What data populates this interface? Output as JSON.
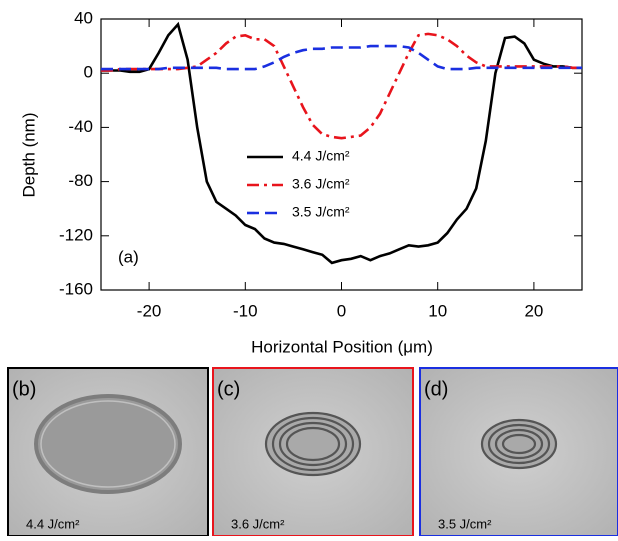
{
  "chart_data": {
    "type": "line",
    "xlabel": "Horizontal Position (μm)",
    "ylabel": "Depth (nm)",
    "annotation": "(a)",
    "xlim": [
      -25,
      25
    ],
    "xticks": [
      -20,
      -10,
      0,
      10,
      20
    ],
    "ylim": [
      -160,
      40
    ],
    "yticks": [
      -160,
      -120,
      -80,
      -40,
      0,
      40
    ],
    "x": [
      -25,
      -24,
      -23,
      -22,
      -21,
      -20,
      -19,
      -18,
      -17,
      -16,
      -15,
      -14,
      -13,
      -12,
      -11,
      -10,
      -9,
      -8,
      -7,
      -6,
      -5,
      -4,
      -3,
      -2,
      -1,
      0,
      1,
      2,
      3,
      4,
      5,
      6,
      7,
      8,
      9,
      10,
      11,
      12,
      13,
      14,
      15,
      16,
      17,
      18,
      19,
      20,
      21,
      22,
      23,
      24,
      25
    ],
    "series": [
      {
        "name": "4.4 J/cm²",
        "color": "#000000",
        "dash": "solid",
        "values": [
          2,
          2,
          2,
          1,
          1,
          3,
          15,
          28,
          36,
          10,
          -40,
          -80,
          -95,
          -100,
          -105,
          -112,
          -115,
          -122,
          -125,
          -126,
          -128,
          -130,
          -132,
          -134,
          -140,
          -138,
          -137,
          -135,
          -138,
          -135,
          -133,
          -130,
          -127,
          -128,
          -127,
          -125,
          -118,
          -108,
          -100,
          -85,
          -50,
          0,
          26,
          27,
          22,
          10,
          7,
          5,
          5,
          4,
          4
        ]
      },
      {
        "name": "3.6 J/cm²",
        "color": "#e8141c",
        "dash": "dashdot",
        "values": [
          2,
          2,
          3,
          3,
          3,
          3,
          3,
          3,
          3,
          4,
          5,
          10,
          15,
          22,
          27,
          28,
          25,
          25,
          20,
          5,
          -10,
          -25,
          -38,
          -45,
          -47,
          -48,
          -47,
          -46,
          -40,
          -30,
          -15,
          0,
          15,
          28,
          29,
          28,
          25,
          20,
          13,
          8,
          5,
          5,
          5,
          5,
          5,
          5,
          5,
          5,
          5,
          4,
          4
        ]
      },
      {
        "name": "3.5 J/cm²",
        "color": "#1a2fe0",
        "dash": "dash",
        "values": [
          3,
          3,
          3,
          3,
          3,
          3,
          3,
          4,
          4,
          4,
          4,
          4,
          4,
          3,
          3,
          3,
          3,
          5,
          8,
          12,
          15,
          17,
          18,
          18,
          19,
          19,
          19,
          19,
          20,
          20,
          20,
          20,
          19,
          15,
          10,
          5,
          3,
          3,
          3,
          4,
          4,
          4,
          4,
          4,
          4,
          4,
          4,
          4,
          4,
          4,
          4
        ]
      }
    ]
  },
  "panels": [
    {
      "label": "(b)",
      "caption": "4.4 J/cm²",
      "border": "#000000"
    },
    {
      "label": "(c)",
      "caption": "3.6 J/cm²",
      "border": "#e8141c"
    },
    {
      "label": "(d)",
      "caption": "3.5 J/cm²",
      "border": "#1a2fe0"
    }
  ]
}
